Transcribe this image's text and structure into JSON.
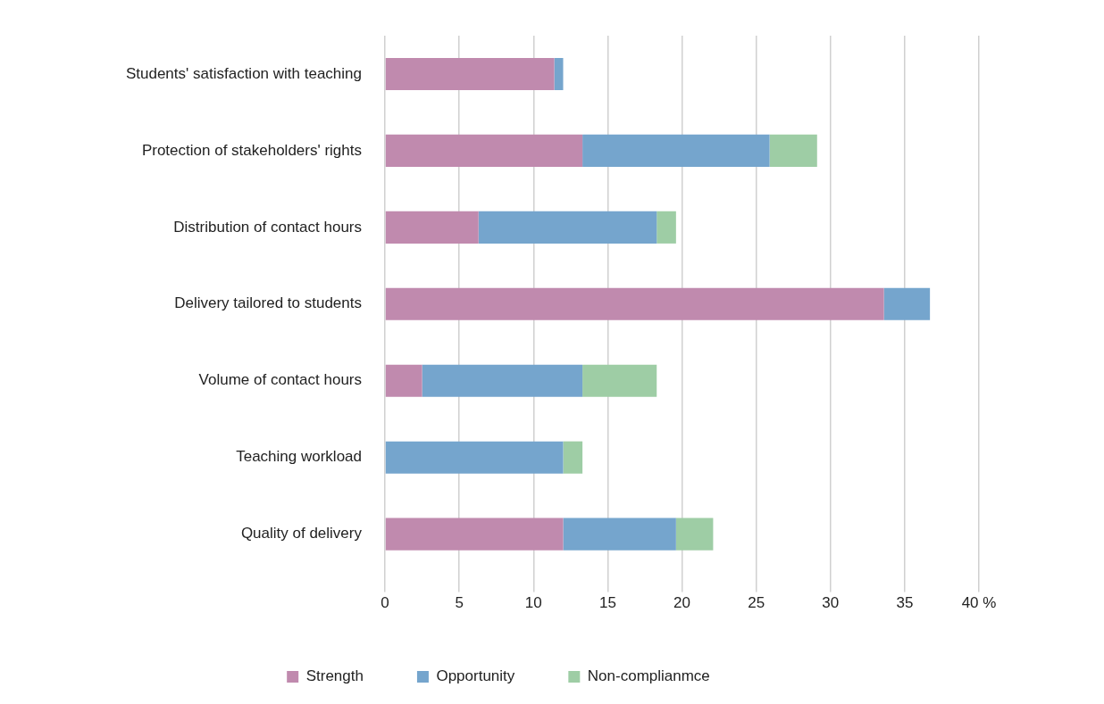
{
  "chart_data": {
    "type": "bar",
    "orientation": "horizontal",
    "stacked": true,
    "categories": [
      "Students' satisfaction with teaching",
      "Protection of stakeholders' rights",
      "Distribution of contact hours",
      "Delivery tailored to students",
      "Volume of contact hours",
      "Teaching workload",
      "Quality of delivery"
    ],
    "series": [
      {
        "name": "Strength",
        "color": "#c08aae",
        "values": [
          11.4,
          13.3,
          6.3,
          33.6,
          2.5,
          null,
          12.0
        ]
      },
      {
        "name": "Opportunity",
        "color": "#75a5cd",
        "values": [
          0.6,
          12.6,
          12.0,
          3.1,
          10.8,
          12.0,
          7.6
        ]
      },
      {
        "name": "Non-complianmce",
        "color": "#9ecda5",
        "values": [
          null,
          3.2,
          1.3,
          null,
          5.0,
          1.3,
          2.5
        ]
      }
    ],
    "xlim": [
      0,
      40
    ],
    "xticks": [
      0,
      5,
      10,
      15,
      20,
      25,
      30,
      35,
      {
        "value": 40,
        "label": "40 %"
      }
    ],
    "grid": "x",
    "legend": "bottom"
  }
}
